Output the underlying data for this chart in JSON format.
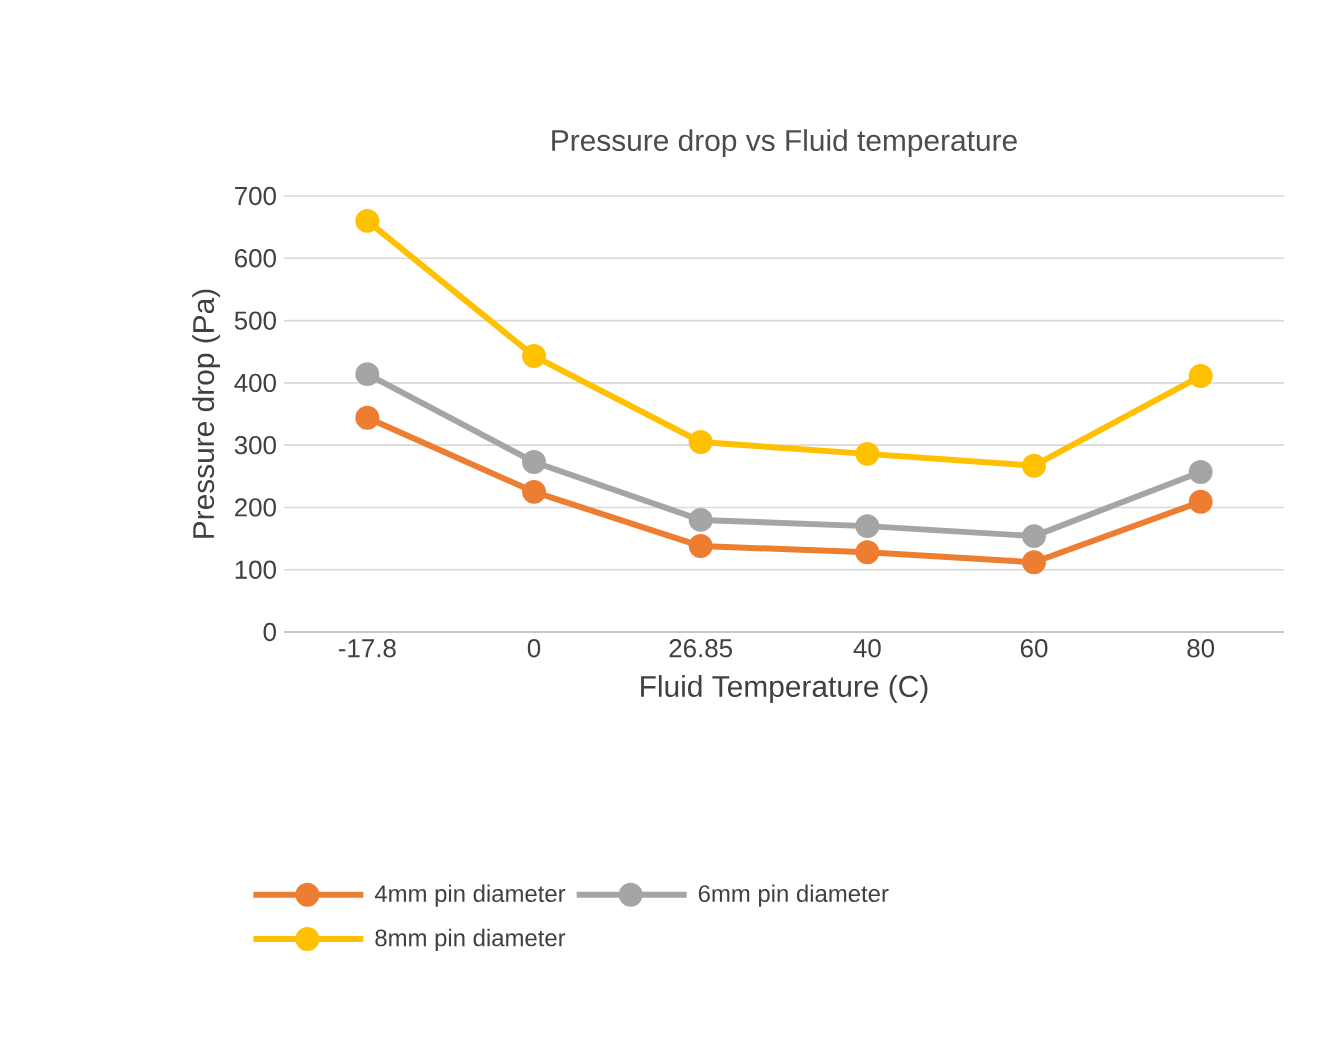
{
  "chart_data": {
    "type": "line",
    "title": "Pressure drop vs Fluid temperature",
    "xlabel": "Fluid Temperature (C)",
    "ylabel": "Pressure drop (Pa)",
    "categories": [
      "-17.8",
      "0",
      "26.85",
      "40",
      "60",
      "80"
    ],
    "series": [
      {
        "name": "4mm pin diameter",
        "color": "#ed7d31",
        "values": [
          344,
          225,
          138,
          128,
          112,
          209
        ]
      },
      {
        "name": "6mm pin diameter",
        "color": "#a5a5a5",
        "values": [
          414,
          273,
          180,
          170,
          154,
          257
        ]
      },
      {
        "name": "8mm pin diameter",
        "color": "#ffc000",
        "values": [
          660,
          443,
          305,
          286,
          267,
          411
        ]
      }
    ],
    "ylim": [
      0,
      700
    ],
    "yticks": [
      0,
      100,
      200,
      300,
      400,
      500,
      600,
      700
    ],
    "grid": "y",
    "legend": "bottom",
    "marker": "circle",
    "line_style": "solid"
  }
}
